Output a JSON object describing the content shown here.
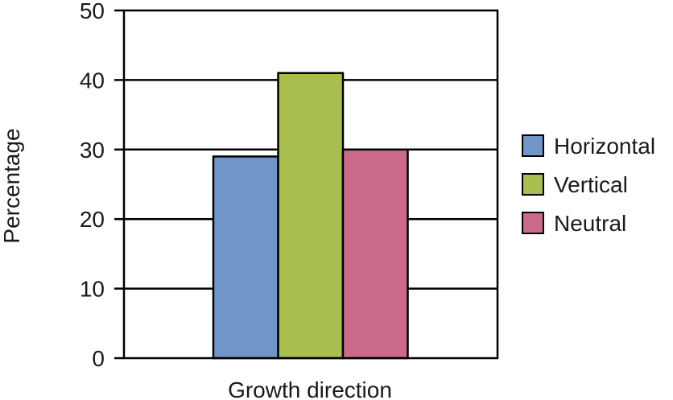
{
  "chart_data": {
    "type": "bar",
    "title": "",
    "xlabel": "Growth direction",
    "ylabel": "Percentage",
    "categories": [
      "Growth direction"
    ],
    "series": [
      {
        "name": "Horizontal",
        "values": [
          29
        ],
        "color": "#7095c8"
      },
      {
        "name": "Vertical",
        "values": [
          41
        ],
        "color": "#a8bf4f"
      },
      {
        "name": "Neutral",
        "values": [
          30
        ],
        "color": "#cc6b89"
      }
    ],
    "ylim": [
      0,
      50
    ],
    "yticks": [
      "0",
      "10",
      "20",
      "30",
      "40",
      "50"
    ],
    "grid": true,
    "legend": "right"
  }
}
